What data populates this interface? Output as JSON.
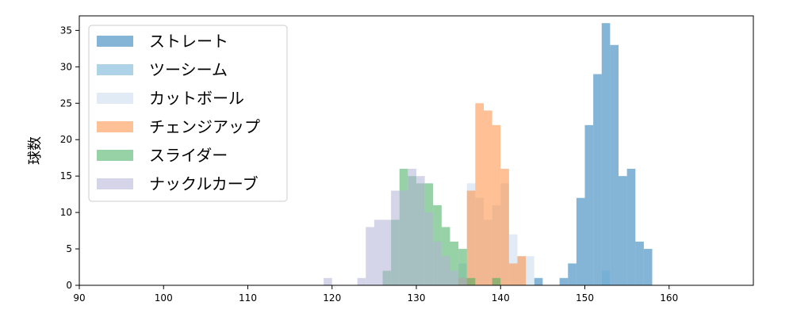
{
  "chart_data": {
    "type": "bar",
    "ylabel": "球数",
    "xlim": [
      90,
      170
    ],
    "ylim": [
      0,
      37
    ],
    "xticks": [
      90,
      100,
      110,
      120,
      130,
      140,
      150,
      160
    ],
    "yticks": [
      0,
      5,
      10,
      15,
      20,
      25,
      30,
      35
    ],
    "grid": false,
    "legend_position": "top-left",
    "series": [
      {
        "name": "ストレート",
        "color": "#1f77b4",
        "bins": [
          [
            144,
            1
          ],
          [
            147,
            1
          ],
          [
            148,
            3
          ],
          [
            149,
            12
          ],
          [
            150,
            22
          ],
          [
            151,
            29
          ],
          [
            152,
            36
          ],
          [
            153,
            33
          ],
          [
            154,
            15
          ],
          [
            155,
            16
          ],
          [
            156,
            6
          ],
          [
            157,
            5
          ]
        ]
      },
      {
        "name": "ツーシーム",
        "color": "#6baed6",
        "bins": [
          [
            152,
            2
          ]
        ]
      },
      {
        "name": "カットボール",
        "color": "#c6dbef",
        "bins": [
          [
            135,
            3
          ],
          [
            136,
            14
          ],
          [
            137,
            12
          ],
          [
            138,
            9
          ],
          [
            139,
            11
          ],
          [
            140,
            14
          ],
          [
            141,
            7
          ],
          [
            142,
            4
          ],
          [
            143,
            4
          ]
        ]
      },
      {
        "name": "チェンジアップ",
        "color": "#fd8d3c",
        "bins": [
          [
            135,
            1
          ],
          [
            136,
            13
          ],
          [
            137,
            25
          ],
          [
            138,
            24
          ],
          [
            139,
            22
          ],
          [
            140,
            16
          ],
          [
            141,
            3
          ],
          [
            142,
            4
          ]
        ]
      },
      {
        "name": "スライダー",
        "color": "#41ab5d",
        "bins": [
          [
            126,
            2
          ],
          [
            127,
            9
          ],
          [
            128,
            16
          ],
          [
            129,
            15
          ],
          [
            130,
            14
          ],
          [
            131,
            14
          ],
          [
            132,
            11
          ],
          [
            133,
            8
          ],
          [
            134,
            6
          ],
          [
            135,
            5
          ],
          [
            136,
            1
          ],
          [
            139,
            1
          ]
        ]
      },
      {
        "name": "ナックルカーブ",
        "color": "#b3b3d9",
        "bins": [
          [
            119,
            1
          ],
          [
            123,
            1
          ],
          [
            124,
            8
          ],
          [
            125,
            9
          ],
          [
            126,
            9
          ],
          [
            127,
            13
          ],
          [
            128,
            13
          ],
          [
            129,
            16
          ],
          [
            130,
            15
          ],
          [
            131,
            10
          ],
          [
            132,
            6
          ],
          [
            133,
            4
          ],
          [
            134,
            2
          ],
          [
            135,
            1
          ]
        ]
      }
    ]
  }
}
